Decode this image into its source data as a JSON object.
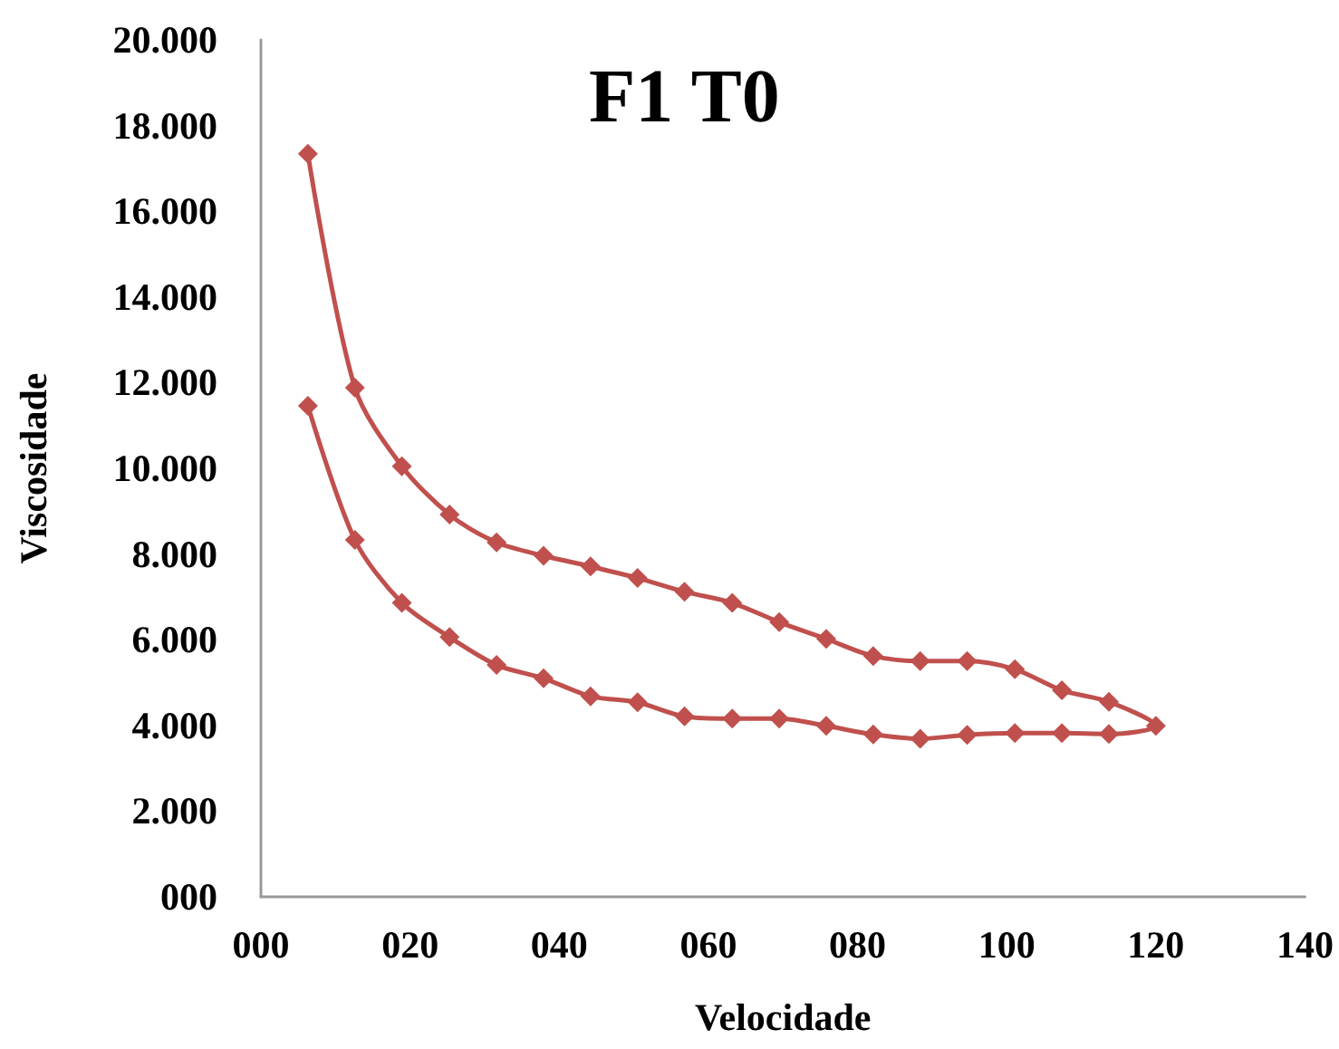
{
  "chart_data": {
    "type": "line",
    "title": "F1 T0",
    "xlabel": "Velocidade",
    "ylabel": "Viscosidade",
    "x": [
      6.3,
      12.6,
      18.9,
      25.3,
      31.6,
      37.9,
      44.2,
      50.5,
      56.8,
      63.2,
      69.5,
      75.8,
      82.1,
      88.4,
      94.7,
      101.1,
      107.4,
      113.7,
      120,
      113.7,
      107.4,
      101.1,
      94.7,
      88.4,
      82.1,
      75.8,
      69.5,
      63.2,
      56.8,
      50.5,
      44.2,
      37.9,
      31.6,
      25.3,
      18.9,
      12.6,
      6.3
    ],
    "series": [
      {
        "color": "#c0504d",
        "values": [
          11460,
          8330,
          6860,
          6060,
          5410,
          5100,
          4680,
          4540,
          4210,
          4160,
          4160,
          3990,
          3790,
          3690,
          3780,
          3820,
          3820,
          3800,
          3990,
          4550,
          4820,
          5310,
          5500,
          5500,
          5620,
          6020,
          6410,
          6860,
          7120,
          7440,
          7710,
          7960,
          8270,
          8920,
          10050,
          11880,
          17340
        ]
      }
    ],
    "xlim": [
      0,
      140
    ],
    "xticks": [
      {
        "value": 0,
        "label": "000"
      },
      {
        "value": 20,
        "label": "020"
      },
      {
        "value": 40,
        "label": "040"
      },
      {
        "value": 60,
        "label": "060"
      },
      {
        "value": 80,
        "label": "080"
      },
      {
        "value": 100,
        "label": "100"
      },
      {
        "value": 120,
        "label": "120"
      },
      {
        "value": 140,
        "label": "140"
      }
    ],
    "ylim": [
      0,
      20000
    ],
    "yticks": [
      {
        "value": 0,
        "label": "000"
      },
      {
        "value": 2000,
        "label": "2.000"
      },
      {
        "value": 4000,
        "label": "4.000"
      },
      {
        "value": 6000,
        "label": "6.000"
      },
      {
        "value": 8000,
        "label": "8.000"
      },
      {
        "value": 10000,
        "label": "10.000"
      },
      {
        "value": 12000,
        "label": "12.000"
      },
      {
        "value": 14000,
        "label": "14.000"
      },
      {
        "value": 16000,
        "label": "16.000"
      },
      {
        "value": 18000,
        "label": "18.000"
      },
      {
        "value": 20000,
        "label": "20.000"
      }
    ],
    "grid": false,
    "marker": "diamond",
    "line_style": "solid"
  }
}
